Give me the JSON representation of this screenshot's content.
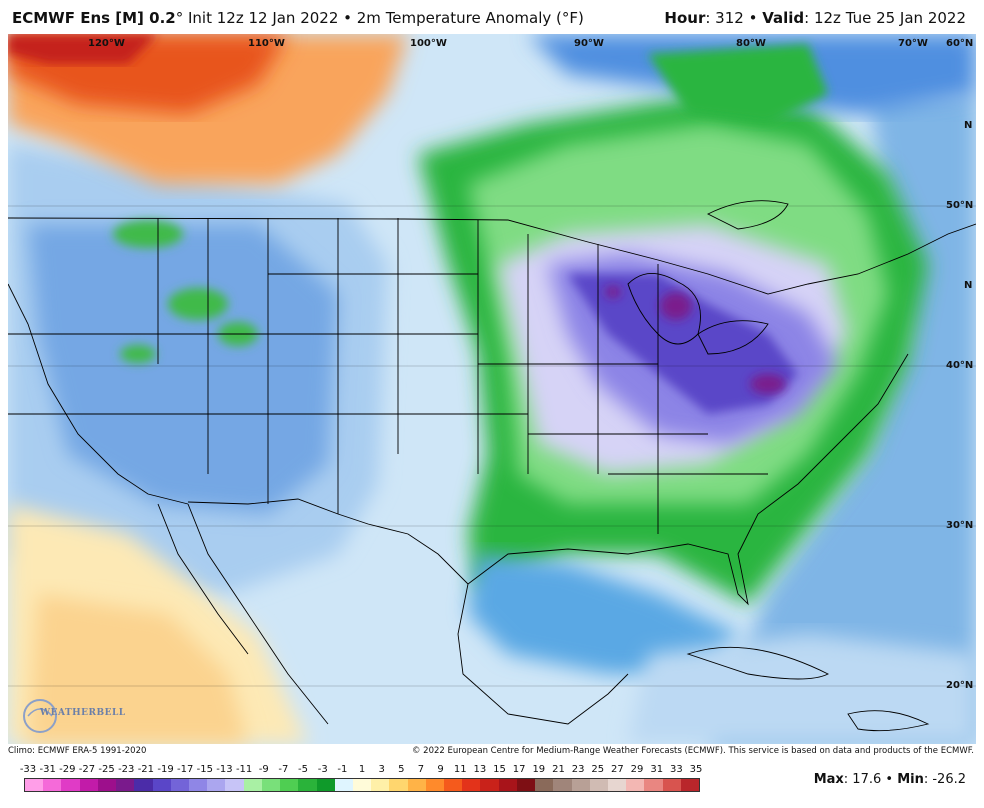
{
  "header": {
    "model": "ECMWF Ens [M] 0.2",
    "degree": "°",
    "rest": " Init 12z 12 Jan 2022 • 2m Temperature Anomaly (°F)",
    "hour_label": "Hour",
    "hour_value": ": 312 • ",
    "valid_label": "Valid",
    "valid_value": ": 12z Tue 25 Jan 2022"
  },
  "map": {
    "lon_labels": [
      "120°W",
      "110°W",
      "100°W",
      "90°W",
      "80°W",
      "70°W",
      "60°N"
    ],
    "lat_labels": [
      "50°N",
      "40°N",
      "30°N",
      "20°N",
      "N",
      "N"
    ],
    "logo_text": "WEATHERBELL"
  },
  "credits": {
    "left": "Climo: ECMWF ERA-5 1991-2020",
    "right": "© 2022 European Centre for Medium-Range Weather Forecasts (ECMWF). This service is based on data and products of the ECMWF."
  },
  "scale": {
    "ticks": [
      "-33",
      "-31",
      "-29",
      "-27",
      "-25",
      "-23",
      "-21",
      "-19",
      "-17",
      "-15",
      "-13",
      "-11",
      "-9",
      "-7",
      "-5",
      "-3",
      "-1",
      "1",
      "3",
      "5",
      "7",
      "9",
      "11",
      "13",
      "15",
      "17",
      "19",
      "21",
      "23",
      "25",
      "27",
      "29",
      "31",
      "33",
      "35"
    ],
    "colors": [
      "#ff9ee8",
      "#f56ad9",
      "#e03bc6",
      "#c21ba9",
      "#9d0f8c",
      "#7a1a8c",
      "#4b2ca8",
      "#5a46c8",
      "#7364d8",
      "#8f86e6",
      "#aba6ef",
      "#c7c4f7",
      "#a9f0a4",
      "#79e07a",
      "#4fce52",
      "#2ab33a",
      "#0f9a2a",
      "#dff5ff",
      "#fffbd9",
      "#fff0a8",
      "#ffd66e",
      "#ffb347",
      "#ff8a2b",
      "#f55a1c",
      "#e3331a",
      "#c9221a",
      "#a8141a",
      "#7e0f14",
      "#8a6a5a",
      "#a0857a",
      "#b8a096",
      "#d0bbb3",
      "#e7d6d0",
      "#f3b7b3",
      "#e98681",
      "#d8544f",
      "#b9262b"
    ],
    "max_label": "Max",
    "max_value": ": 17.6 • ",
    "min_label": "Min",
    "min_value": ": -26.2"
  }
}
